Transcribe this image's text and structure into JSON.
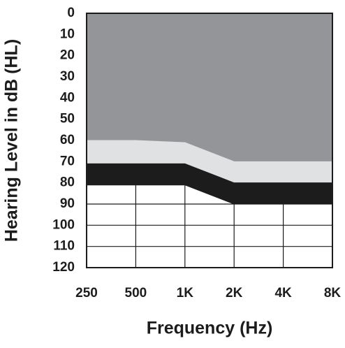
{
  "chart_data": {
    "type": "band",
    "x_label": "Frequency (Hz)",
    "y_label": "Hearing Level in dB (HL)",
    "categories": [
      "250",
      "500",
      "1K",
      "2K",
      "4K",
      "8K"
    ],
    "series": [
      {
        "color": "#939598",
        "values": [
          60,
          60,
          61,
          70,
          70,
          70
        ]
      },
      {
        "color": "#e0e1e2",
        "values": [
          71,
          71,
          71,
          80,
          80,
          80
        ]
      },
      {
        "color": "#1c1c1c",
        "values": [
          81,
          81,
          81,
          90,
          90,
          90
        ]
      }
    ],
    "ylim": [
      0,
      120
    ],
    "y_inverted": true,
    "yticks": [
      0,
      10,
      20,
      30,
      40,
      50,
      60,
      70,
      80,
      90,
      100,
      110,
      120
    ],
    "grid": true
  }
}
